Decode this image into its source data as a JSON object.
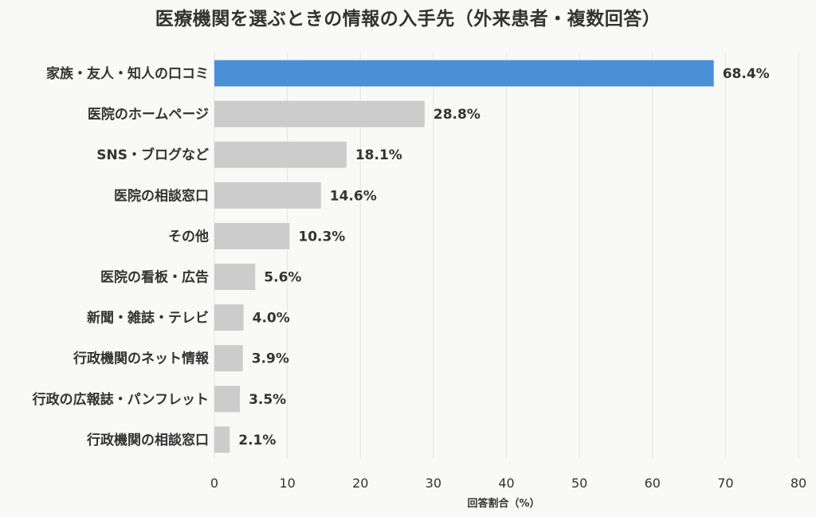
{
  "chart_data": {
    "type": "bar",
    "orientation": "horizontal",
    "title": "医療機関を選ぶときの情報の入手先（外来患者・複数回答）",
    "xlabel": "回答割合（%）",
    "ylabel": "",
    "xlim": [
      0,
      80
    ],
    "xticks": [
      "0",
      "10",
      "20",
      "30",
      "40",
      "50",
      "60",
      "70",
      "80"
    ],
    "grid": true,
    "categories": [
      "家族・友人・知人の口コミ",
      "医院のホームページ",
      "SNS・ブログなど",
      "医院の相談窓口",
      "その他",
      "医院の看板・広告",
      "新聞・雑誌・テレビ",
      "行政機関のネット情報",
      "行政の広報誌・パンフレット",
      "行政機関の相談窓口"
    ],
    "values": [
      68.4,
      28.8,
      18.1,
      14.6,
      10.3,
      5.6,
      4.0,
      3.9,
      3.5,
      2.1
    ],
    "value_labels": [
      "68.4%",
      "28.8%",
      "18.1%",
      "14.6%",
      "10.3%",
      "5.6%",
      "4.0%",
      "3.9%",
      "3.5%",
      "2.1%"
    ],
    "colors": {
      "highlight": "#4a90d9",
      "default": "#cccccc",
      "grid": "#e4e4e4",
      "background": "#f9f9f8",
      "text": "#333333"
    }
  }
}
